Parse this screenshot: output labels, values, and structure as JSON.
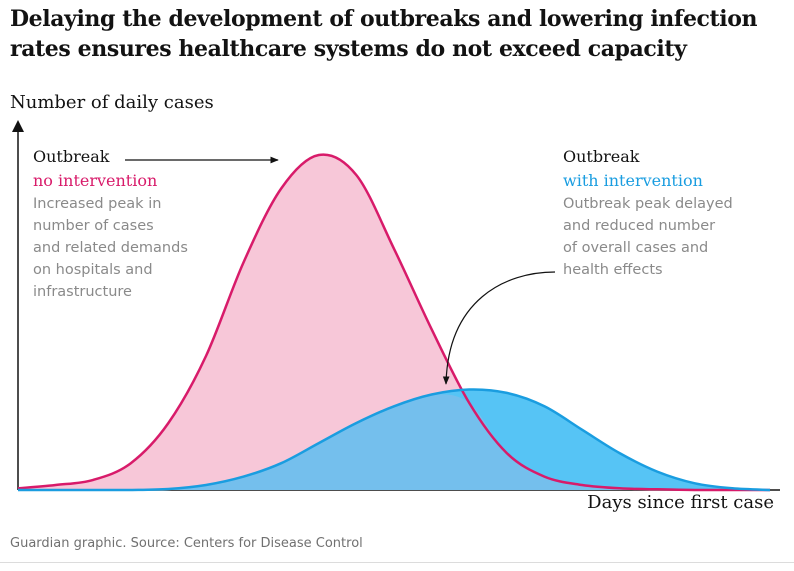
{
  "title": "Delaying the development of outbreaks and lowering infection rates ensures healthcare systems do not exceed capacity",
  "source": "Guardian graphic. Source: Centers for Disease Control",
  "chart_data": {
    "type": "area",
    "xlabel": "Days since first case",
    "ylabel": "Number of daily cases",
    "x_ticks": "none",
    "y_ticks": "none",
    "grid": false,
    "series": [
      {
        "key": "no_intervention",
        "color": "#d81b6a",
        "fill": "#f7c7d8",
        "x": [
          0,
          5,
          10,
          15,
          20,
          25,
          30,
          35,
          40,
          45,
          50,
          55,
          60,
          65,
          70,
          75,
          80,
          85,
          90,
          95,
          100
        ],
        "values": [
          0.5,
          1.5,
          3,
          8,
          20,
          40,
          68,
          90,
          100,
          94,
          72,
          48,
          26,
          11,
          4,
          1.5,
          0.5,
          0.2,
          0,
          0,
          0
        ]
      },
      {
        "key": "with_intervention",
        "color": "#1a9de0",
        "fill": "#56c4f5",
        "x": [
          0,
          5,
          10,
          15,
          20,
          25,
          30,
          35,
          40,
          45,
          50,
          55,
          60,
          65,
          70,
          75,
          80,
          85,
          90,
          95,
          100
        ],
        "values": [
          0,
          0,
          0,
          0,
          0.3,
          1.5,
          4,
          8,
          14,
          20,
          25,
          28.5,
          30,
          29,
          25,
          18,
          11,
          5.5,
          2,
          0.5,
          0
        ]
      }
    ],
    "annotations": [
      {
        "key": "no_intervention",
        "heading": "Outbreak",
        "highlight": "no intervention",
        "highlight_color": "#d81b6a",
        "body": [
          "Increased peak in",
          "number of cases",
          "and related demands",
          "on hospitals and",
          "infrastructure"
        ]
      },
      {
        "key": "with_intervention",
        "heading": "Outbreak",
        "highlight": "with intervention",
        "highlight_color": "#1a9de0",
        "body": [
          "Outbreak peak delayed",
          "and reduced number",
          "of overall cases and",
          "health effects"
        ]
      }
    ]
  }
}
